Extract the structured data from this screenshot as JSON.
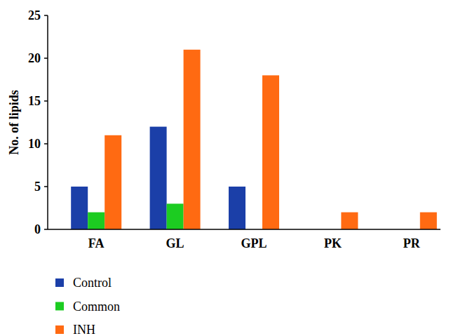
{
  "chart_data": {
    "type": "bar",
    "y_label": "No. of lipids",
    "categories": [
      "FA",
      "GL",
      "GPL",
      "PK",
      "PR"
    ],
    "series": [
      {
        "name": "Control",
        "color": "#1b3fa8",
        "values": [
          5,
          12,
          5,
          0,
          0
        ]
      },
      {
        "name": "Common",
        "color": "#1ccc21",
        "values": [
          2,
          3,
          0,
          0,
          0
        ]
      },
      {
        "name": "INH",
        "color": "#ff6a12",
        "values": [
          11,
          21,
          18,
          2,
          2
        ]
      }
    ],
    "ylim": [
      0,
      25
    ],
    "yticks": [
      0,
      5,
      10,
      15,
      20,
      25
    ],
    "grid": false,
    "legend": "bottom-left"
  }
}
